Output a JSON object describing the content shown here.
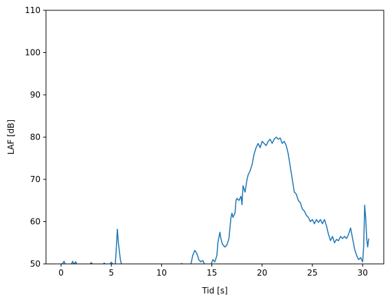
{
  "chart_data": {
    "type": "line",
    "xlabel": "Tid [s]",
    "ylabel": "LAF [dB]",
    "xlim": [
      -1.5,
      32.1
    ],
    "ylim": [
      50,
      110
    ],
    "xticks": [
      0,
      5,
      10,
      15,
      20,
      25,
      30
    ],
    "yticks": [
      50,
      60,
      70,
      80,
      90,
      100,
      110
    ],
    "grid": false,
    "line_color": "#1f77b4",
    "segments": [
      {
        "x": [
          0.0,
          0.15,
          0.3,
          0.45
        ],
        "y": [
          49.8,
          50.1,
          50.6,
          49.8
        ]
      },
      {
        "x": [
          1.0,
          1.15,
          1.3,
          1.45,
          1.6
        ],
        "y": [
          49.8,
          50.6,
          49.9,
          50.5,
          49.8
        ]
      },
      {
        "x": [
          2.8,
          3.0,
          3.2
        ],
        "y": [
          49.8,
          50.3,
          49.8
        ]
      },
      {
        "x": [
          4.1,
          4.3,
          4.5
        ],
        "y": [
          49.8,
          50.2,
          49.8
        ]
      },
      {
        "x": [
          4.8,
          5.0,
          5.2
        ],
        "y": [
          49.8,
          50.4,
          49.8
        ]
      },
      {
        "x": [
          5.4,
          5.5,
          5.6,
          5.7,
          5.8,
          5.9,
          6.0,
          6.1
        ],
        "y": [
          50.0,
          54.0,
          58.2,
          55.0,
          53.0,
          51.0,
          50.0,
          49.8
        ]
      },
      {
        "x": [
          11.8,
          12.0,
          12.2
        ],
        "y": [
          49.8,
          50.1,
          49.8
        ]
      },
      {
        "x": [
          12.9,
          13.1,
          13.3,
          13.5,
          13.7,
          13.9,
          14.1,
          14.3
        ],
        "y": [
          49.8,
          52.0,
          53.2,
          52.5,
          51.0,
          50.5,
          50.8,
          49.8
        ]
      },
      {
        "x": [
          14.9,
          15.1,
          15.3,
          15.5,
          15.6,
          15.8,
          15.9,
          16.0,
          16.1,
          16.3,
          16.5,
          16.7,
          16.9,
          17.0,
          17.1,
          17.3,
          17.4,
          17.5,
          17.7,
          17.9,
          18.0,
          18.1,
          18.3,
          18.5,
          18.6,
          18.8,
          19.0,
          19.2,
          19.4,
          19.6,
          19.8,
          20.0,
          20.2,
          20.4,
          20.6,
          20.8,
          21.0,
          21.2,
          21.4,
          21.6,
          21.8,
          22.0,
          22.2,
          22.4,
          22.6,
          22.8,
          23.0,
          23.2,
          23.4,
          23.6,
          23.8,
          24.0,
          24.2,
          24.4,
          24.6,
          24.8,
          25.0,
          25.2,
          25.4,
          25.6,
          25.8,
          26.0,
          26.2,
          26.4,
          26.6,
          26.8,
          27.0,
          27.2,
          27.4,
          27.6,
          27.8,
          28.0,
          28.2,
          28.4,
          28.6,
          28.8,
          29.0,
          29.2,
          29.4,
          29.6,
          29.8,
          30.0,
          30.1,
          30.2,
          30.3,
          30.4,
          30.5,
          30.6
        ],
        "y": [
          49.8,
          51.0,
          50.5,
          52.0,
          55.0,
          57.5,
          56.0,
          55.0,
          54.5,
          54.0,
          54.5,
          56.0,
          61.0,
          62.0,
          61.0,
          62.0,
          65.0,
          65.5,
          65.0,
          66.0,
          64.0,
          68.5,
          67.0,
          70.0,
          71.0,
          72.0,
          73.5,
          76.0,
          77.5,
          78.5,
          77.5,
          79.0,
          78.5,
          78.0,
          79.0,
          79.5,
          78.5,
          79.5,
          80.0,
          79.5,
          79.8,
          78.5,
          79.0,
          78.0,
          76.0,
          73.0,
          70.0,
          67.0,
          66.5,
          65.0,
          64.5,
          63.0,
          62.5,
          61.5,
          61.0,
          60.0,
          60.5,
          59.5,
          60.5,
          59.8,
          60.5,
          59.5,
          60.5,
          59.0,
          57.0,
          55.5,
          56.5,
          55.0,
          55.8,
          55.5,
          56.5,
          56.0,
          56.5,
          56.0,
          57.0,
          58.5,
          56.0,
          53.5,
          52.0,
          51.0,
          51.5,
          50.5,
          54.0,
          63.9,
          61.0,
          56.0,
          54.0,
          56.0
        ]
      }
    ]
  }
}
